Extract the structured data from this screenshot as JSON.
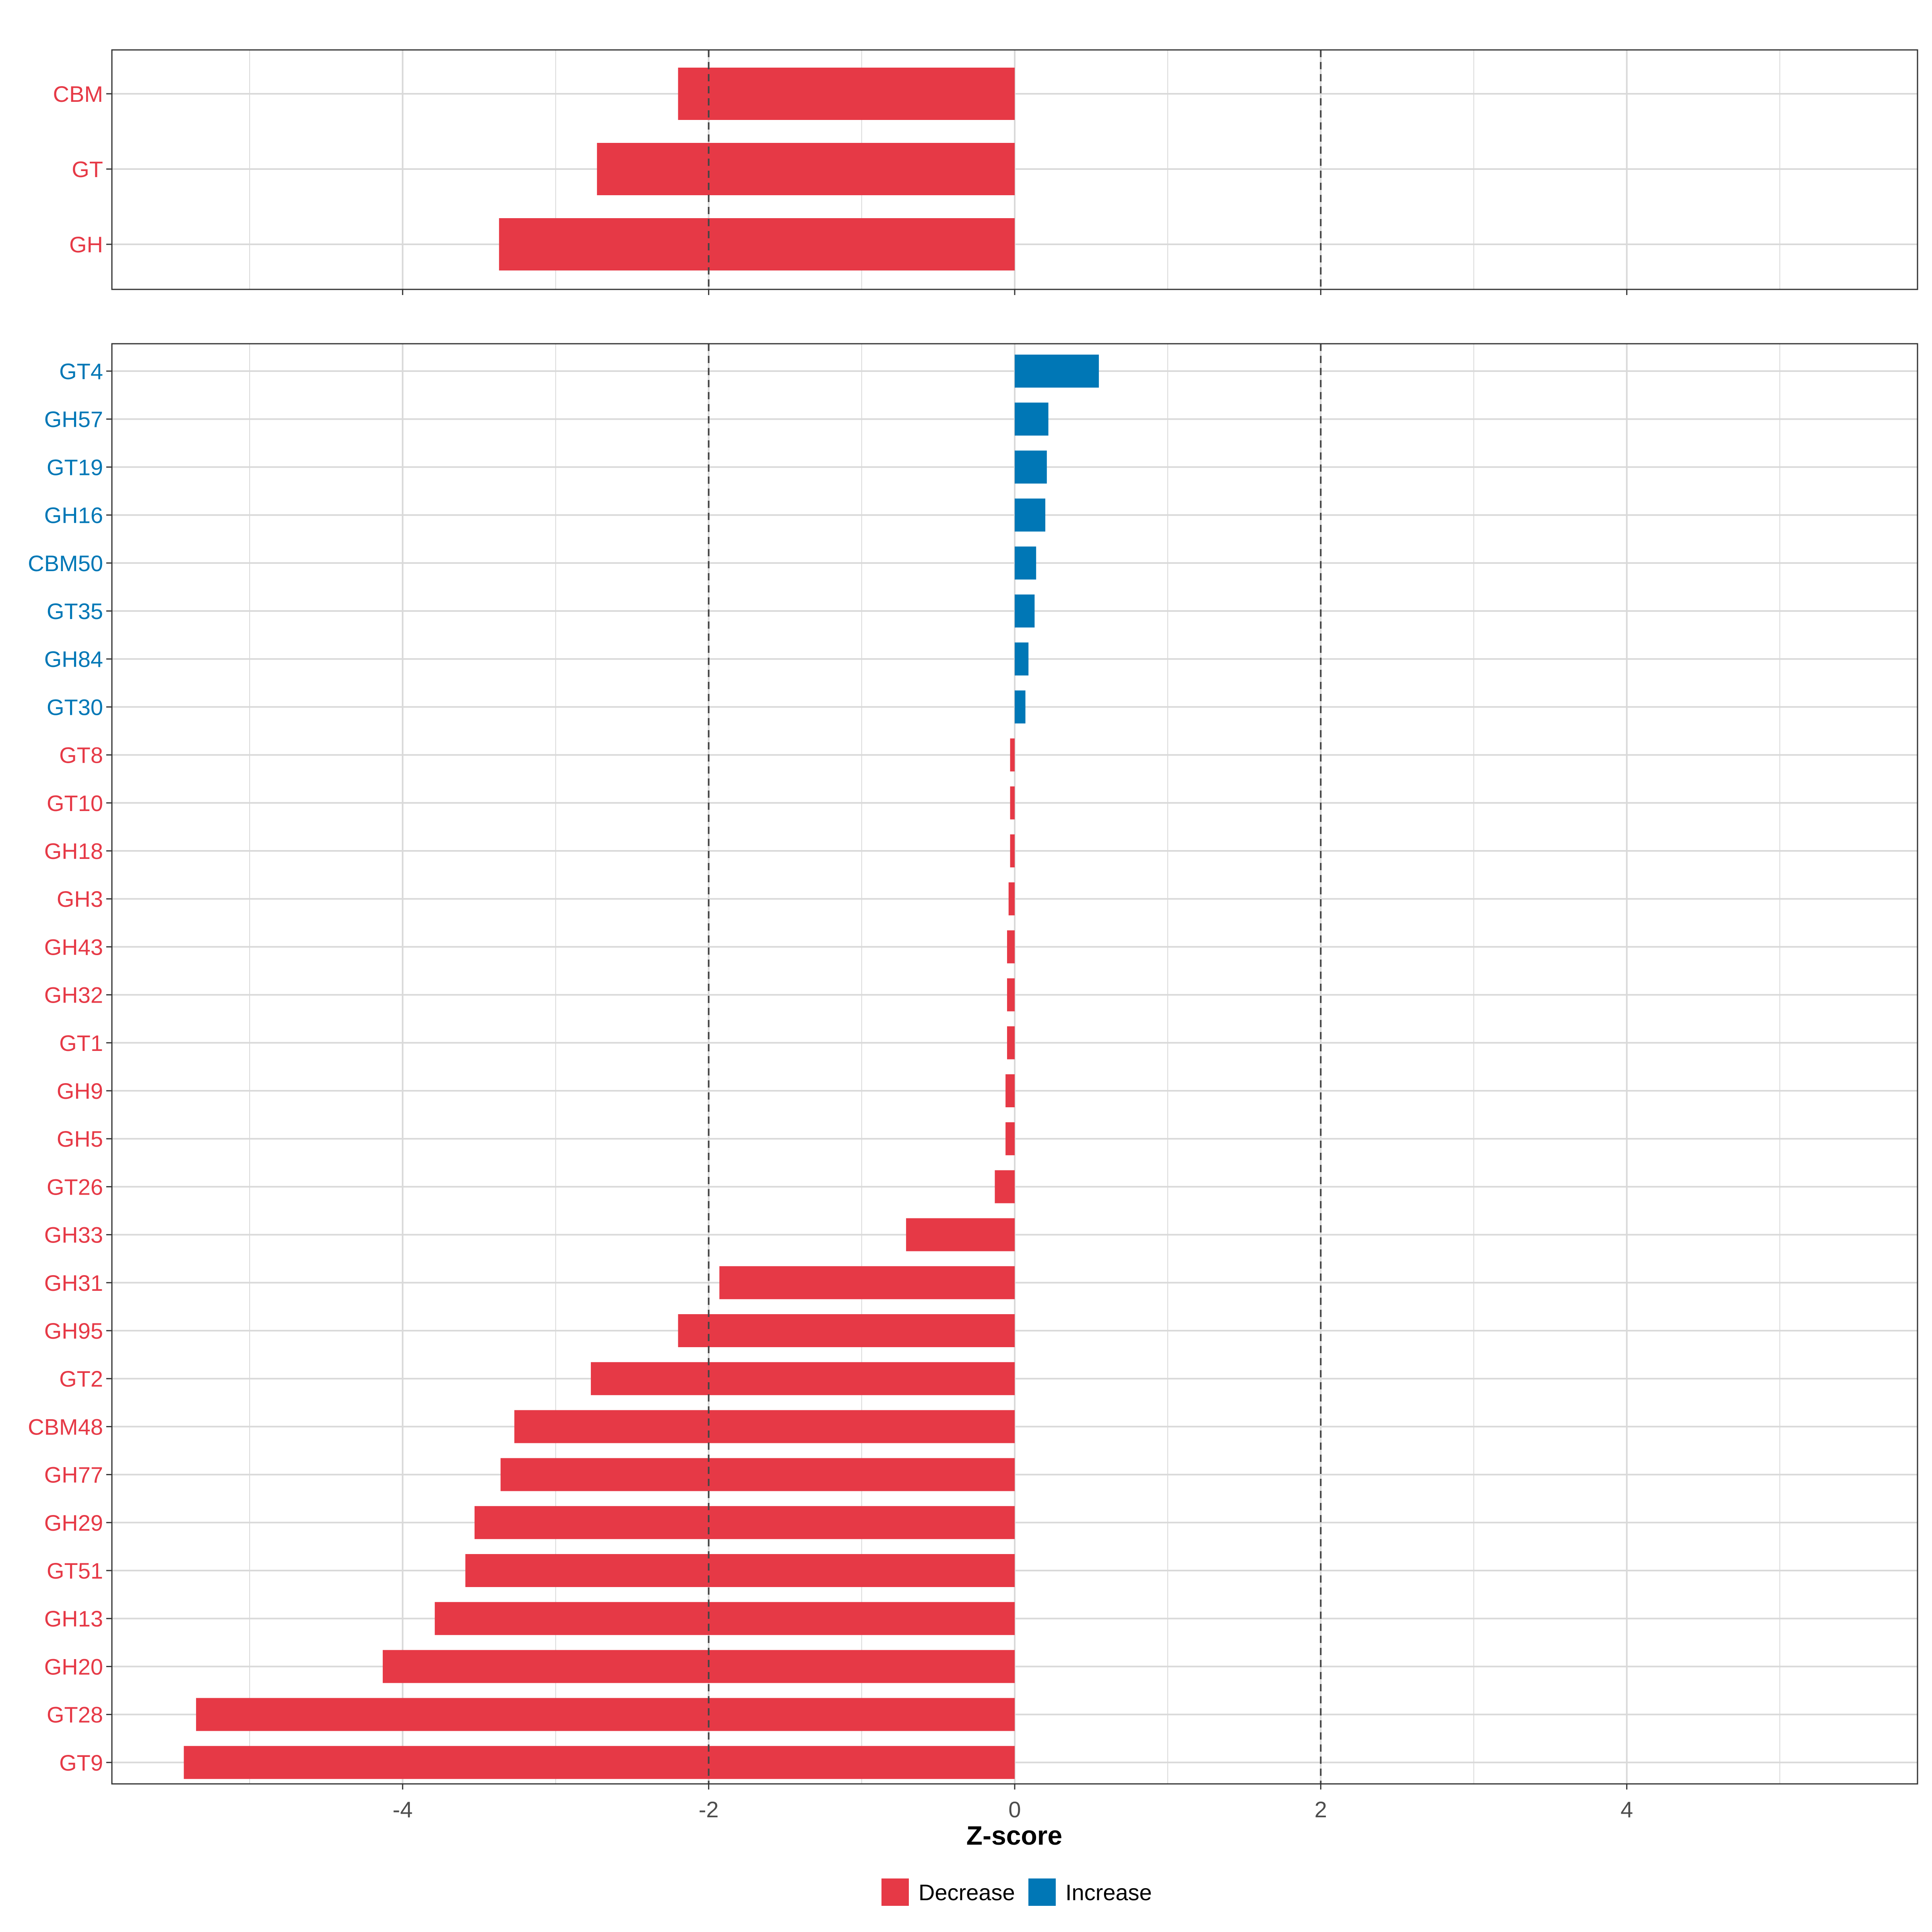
{
  "colors": {
    "decrease": "#E63946",
    "increase": "#0077B6",
    "grid": "#D9D9D9",
    "panel_border": "#333333",
    "reference_line": "#444444"
  },
  "chart_data": {
    "type": "bar",
    "orientation": "horizontal",
    "xlabel": "Z-score",
    "xlim": [
      -5.9,
      5.9
    ],
    "x_ticks": [
      -4,
      -2,
      0,
      2,
      4
    ],
    "x_tick_labels": [
      "-4",
      "-2",
      "0",
      "2",
      "4"
    ],
    "minor_gridlines": [
      -5,
      -3,
      -1,
      1,
      3,
      5
    ],
    "reference_lines": [
      -2,
      2
    ],
    "grid": true,
    "legend": {
      "position": "bottom",
      "entries": [
        {
          "label": "Decrease",
          "key": "decrease"
        },
        {
          "label": "Increase",
          "key": "increase"
        }
      ]
    },
    "panels": [
      {
        "name": "classes",
        "categories": [
          "CBM",
          "GT",
          "GH"
        ],
        "values": [
          -2.2,
          -2.73,
          -3.37
        ],
        "direction": [
          "Decrease",
          "Decrease",
          "Decrease"
        ]
      },
      {
        "name": "families",
        "categories": [
          "GT4",
          "GH57",
          "GT19",
          "GH16",
          "CBM50",
          "GT35",
          "GH84",
          "GT30",
          "GT8",
          "GT10",
          "GH18",
          "GH3",
          "GH43",
          "GH32",
          "GT1",
          "GH9",
          "GH5",
          "GT26",
          "GH33",
          "GH31",
          "GH95",
          "GT2",
          "CBM48",
          "GH77",
          "GH29",
          "GT51",
          "GH13",
          "GH20",
          "GT28",
          "GT9"
        ],
        "values": [
          0.55,
          0.22,
          0.21,
          0.2,
          0.14,
          0.13,
          0.09,
          0.07,
          -0.03,
          -0.03,
          -0.03,
          -0.04,
          -0.05,
          -0.05,
          -0.05,
          -0.06,
          -0.06,
          -0.13,
          -0.71,
          -1.93,
          -2.2,
          -2.77,
          -3.27,
          -3.36,
          -3.53,
          -3.59,
          -3.79,
          -4.13,
          -5.35,
          -5.43
        ],
        "direction": [
          "Increase",
          "Increase",
          "Increase",
          "Increase",
          "Increase",
          "Increase",
          "Increase",
          "Increase",
          "Decrease",
          "Decrease",
          "Decrease",
          "Decrease",
          "Decrease",
          "Decrease",
          "Decrease",
          "Decrease",
          "Decrease",
          "Decrease",
          "Decrease",
          "Decrease",
          "Decrease",
          "Decrease",
          "Decrease",
          "Decrease",
          "Decrease",
          "Decrease",
          "Decrease",
          "Decrease",
          "Decrease",
          "Decrease"
        ]
      }
    ]
  }
}
